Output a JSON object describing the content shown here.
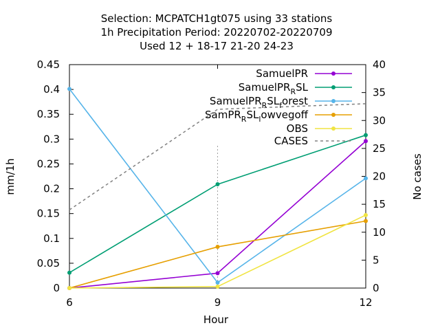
{
  "chart_data": {
    "type": "line",
    "title_lines": [
      "Selection: MCPATCH1gt075 using    33 stations",
      "1h Precipitation   Period: 20220702-20220709",
      "Used  12 + 18-17 21-20 24-23"
    ],
    "xlabel": "Hour",
    "ylabel": "mm/1h",
    "y2label": "No cases",
    "x": [
      6,
      9,
      12
    ],
    "x_ticks": [
      "6",
      "9",
      "12"
    ],
    "xlim": [
      6,
      12
    ],
    "ylim": [
      0,
      0.45
    ],
    "y_ticks": [
      "0",
      "0.05",
      "0.1",
      "0.15",
      "0.2",
      "0.25",
      "0.3",
      "0.35",
      "0.4",
      "0.45"
    ],
    "y2lim": [
      0,
      40
    ],
    "y2_ticks": [
      "0",
      "5",
      "10",
      "15",
      "20",
      "25",
      "30",
      "35",
      "40"
    ],
    "legend_position": "top-right",
    "series": [
      {
        "name": "SamuelPR",
        "display": {
          "base": "SamuelPR",
          "sub": ""
        },
        "color": "#9400d3",
        "dash": false,
        "marker": true,
        "axis": "y",
        "values": [
          0.0,
          0.03,
          0.296
        ]
      },
      {
        "name": "SamuelPR_RSL",
        "display": {
          "base": "SamuelPR",
          "sub": "R",
          "rest": "SL"
        },
        "color": "#009e73",
        "dash": false,
        "marker": true,
        "axis": "y",
        "values": [
          0.031,
          0.209,
          0.308
        ]
      },
      {
        "name": "SamuelPR_RSL_forest",
        "display": {
          "base": "SamuelPR",
          "sub": "R",
          "rest": "SL",
          "sub2": "f",
          "rest2": "orest"
        },
        "color": "#56b4e9",
        "dash": false,
        "marker": true,
        "axis": "y",
        "values": [
          0.401,
          0.011,
          0.221
        ]
      },
      {
        "name": "SamPR_RSL_lowvegoff",
        "display": {
          "base": "SamPR",
          "sub": "R",
          "rest": "SL",
          "sub2": "l",
          "rest2": "owvegoff"
        },
        "color": "#e69f00",
        "dash": false,
        "marker": true,
        "axis": "y",
        "values": [
          0.0,
          0.083,
          0.135
        ]
      },
      {
        "name": "OBS",
        "display": {
          "base": "OBS",
          "sub": ""
        },
        "color": "#f0e442",
        "dash": false,
        "marker": true,
        "axis": "y",
        "values": [
          0.0,
          0.003,
          0.147
        ]
      },
      {
        "name": "CASES",
        "display": {
          "base": "CASES",
          "sub": ""
        },
        "color": "#808080",
        "dash": true,
        "marker": false,
        "axis": "y2",
        "values": [
          14,
          32,
          33
        ]
      }
    ]
  }
}
